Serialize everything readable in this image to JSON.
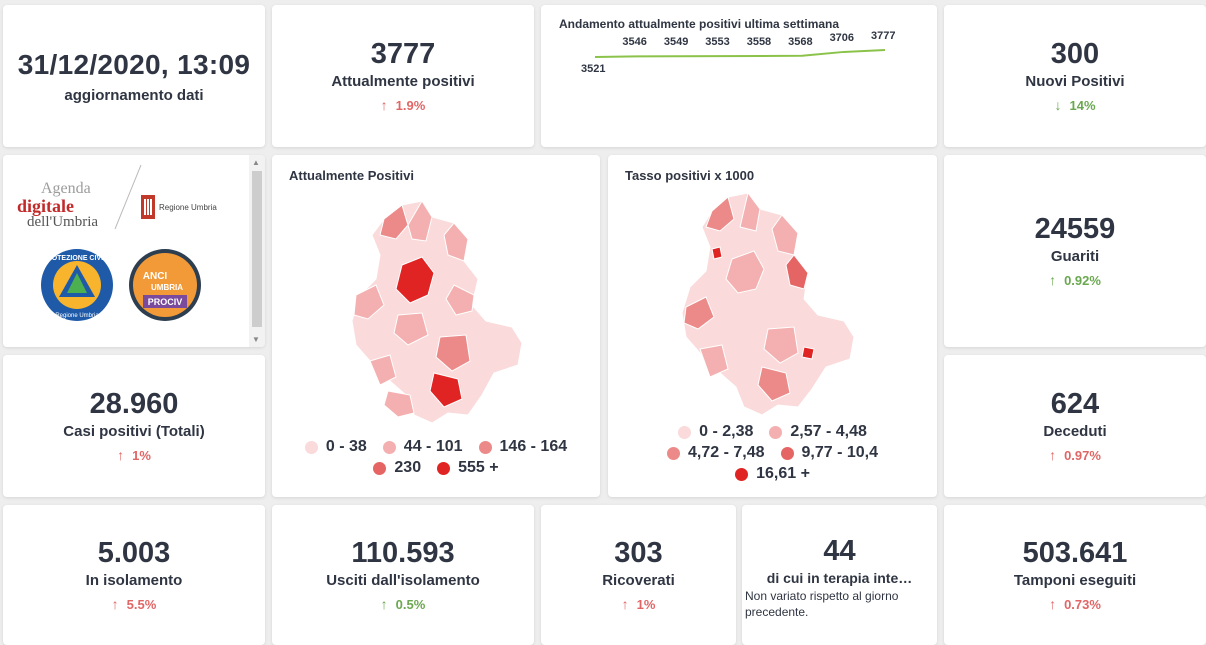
{
  "date_card": {
    "value": "31/12/2020, 13:09",
    "label": "aggiornamento dati"
  },
  "attualmente_positivi": {
    "value": "3777",
    "label": "Attualmente positivi",
    "change": "1.9%"
  },
  "sparkline": {
    "title": "Andamento attualmente positivi ultima settimana",
    "values": [
      "3521",
      "3546",
      "3549",
      "3553",
      "3558",
      "3568",
      "3706",
      "3777"
    ]
  },
  "nuovi_positivi": {
    "value": "300",
    "label": "Nuovi Positivi",
    "change": "14%"
  },
  "logos": {
    "agenda_line1": "Agenda",
    "agenda_line2": "digitale",
    "agenda_line3": "dell'Umbria",
    "regione": "Regione Umbria",
    "protezione_top": "Protezione Civile",
    "protezione_bottom": "Regione Umbria",
    "anci_line1": "ANCI",
    "anci_line2": "UMBRIA",
    "anci_line3": "PROCIV"
  },
  "map1": {
    "title": "Attualmente Positivi",
    "legend": [
      {
        "label": "0 - 38",
        "color": "#fadada"
      },
      {
        "label": "44 - 101",
        "color": "#f4b0b0"
      },
      {
        "label": "146 - 164",
        "color": "#ec8a8a"
      },
      {
        "label": "230",
        "color": "#e56464"
      },
      {
        "label": "555 +",
        "color": "#e02424"
      }
    ]
  },
  "map2": {
    "title": "Tasso positivi x 1000",
    "legend": [
      {
        "label": "0 - 2,38",
        "color": "#fadada"
      },
      {
        "label": "2,57 - 4,48",
        "color": "#f4b0b0"
      },
      {
        "label": "4,72 - 7,48",
        "color": "#ec8a8a"
      },
      {
        "label": "9,77 - 10,4",
        "color": "#e56464"
      },
      {
        "label": "16,61 +",
        "color": "#e02424"
      }
    ]
  },
  "guariti": {
    "value": "24559",
    "label": "Guariti",
    "change": "0.92%"
  },
  "casi_totali": {
    "value": "28.960",
    "label": "Casi positivi (Totali)",
    "change": "1%"
  },
  "deceduti": {
    "value": "624",
    "label": "Deceduti",
    "change": "0.97%"
  },
  "isolamento": {
    "value": "5.003",
    "label": "In isolamento",
    "change": "5.5%"
  },
  "usciti": {
    "value": "110.593",
    "label": "Usciti dall'isolamento",
    "change": "0.5%"
  },
  "ricoverati": {
    "value": "303",
    "label": "Ricoverati",
    "change": "1%"
  },
  "terapia": {
    "value": "44",
    "label": "di cui in terapia inte…",
    "note": "Non variato rispetto al giorno precedente."
  },
  "tamponi": {
    "value": "503.641",
    "label": "Tamponi eseguiti",
    "change": "0.73%"
  },
  "colors": {
    "up": "#e06666",
    "down": "#6aa84f",
    "text": "#2f3542",
    "spark_line": "#8bc34a"
  }
}
